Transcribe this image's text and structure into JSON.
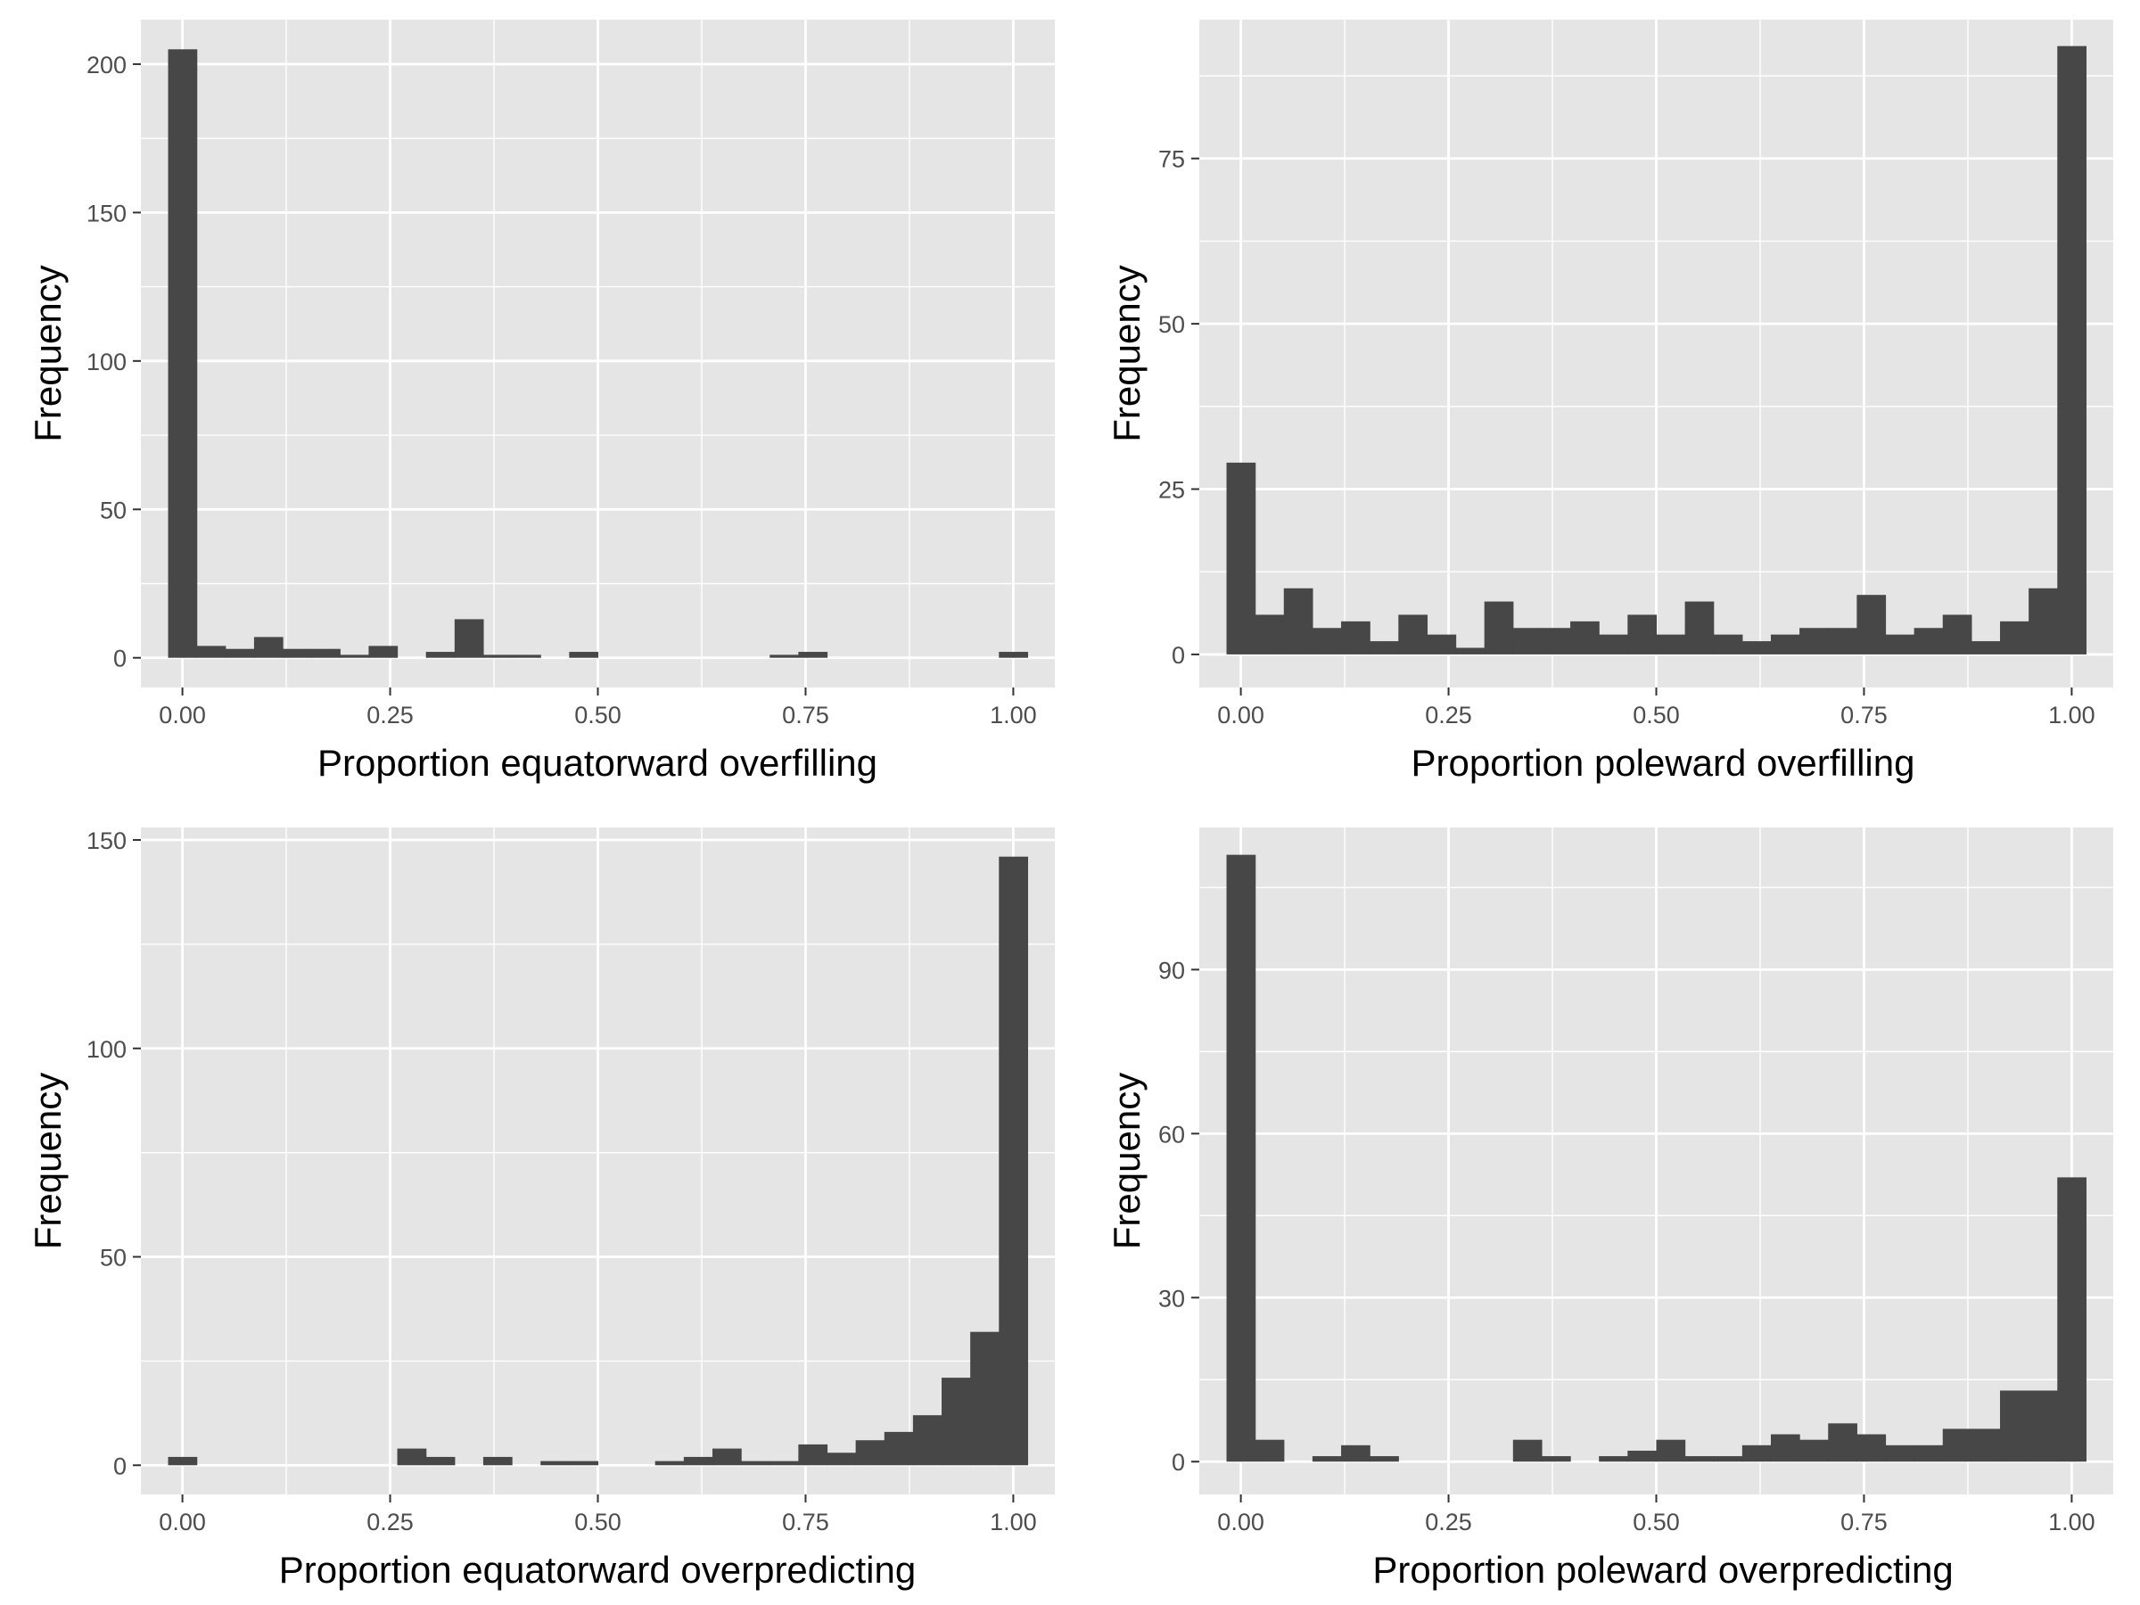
{
  "colors": {
    "panel_bg": "#e5e5e5",
    "grid": "#ffffff",
    "bar": "#474747",
    "tick": "#333333"
  },
  "chart_data": [
    {
      "type": "bar",
      "xlabel": "Proportion equatorward overfilling",
      "ylabel": "Frequency",
      "xlim": [
        -0.05,
        1.05
      ],
      "ylim": [
        -10,
        215
      ],
      "xticks": [
        0,
        0.25,
        0.5,
        0.75,
        1
      ],
      "xtick_labels": [
        "0.00",
        "0.25",
        "0.50",
        "0.75",
        "1.00"
      ],
      "yticks": [
        0,
        50,
        100,
        150,
        200
      ],
      "ytick_labels": [
        "0",
        "50",
        "100",
        "150",
        "200"
      ],
      "bin_start": -0.01724,
      "bin_width": 0.03448,
      "values": [
        205,
        4,
        3,
        7,
        3,
        3,
        1,
        4,
        0,
        2,
        13,
        1,
        1,
        0,
        2,
        0,
        0,
        0,
        0,
        0,
        0,
        1,
        2,
        0,
        0,
        0,
        0,
        0,
        0,
        2
      ]
    },
    {
      "type": "bar",
      "xlabel": "Proportion poleward overfilling",
      "ylabel": "Frequency",
      "xlim": [
        -0.05,
        1.05
      ],
      "ylim": [
        -5,
        96
      ],
      "xticks": [
        0,
        0.25,
        0.5,
        0.75,
        1
      ],
      "xtick_labels": [
        "0.00",
        "0.25",
        "0.50",
        "0.75",
        "1.00"
      ],
      "yticks": [
        0,
        25,
        50,
        75
      ],
      "ytick_labels": [
        "0",
        "25",
        "50",
        "75"
      ],
      "bin_start": -0.01724,
      "bin_width": 0.03448,
      "values": [
        29,
        6,
        10,
        4,
        5,
        2,
        6,
        3,
        1,
        8,
        4,
        4,
        5,
        3,
        6,
        3,
        8,
        3,
        2,
        3,
        4,
        4,
        9,
        3,
        4,
        6,
        2,
        5,
        10,
        92
      ]
    },
    {
      "type": "bar",
      "xlabel": "Proportion equatorward overpredicting",
      "ylabel": "Frequency",
      "xlim": [
        -0.05,
        1.05
      ],
      "ylim": [
        -7,
        153
      ],
      "xticks": [
        0,
        0.25,
        0.5,
        0.75,
        1
      ],
      "xtick_labels": [
        "0.00",
        "0.25",
        "0.50",
        "0.75",
        "1.00"
      ],
      "yticks": [
        0,
        50,
        100,
        150
      ],
      "ytick_labels": [
        "0",
        "50",
        "100",
        "150"
      ],
      "bin_start": -0.01724,
      "bin_width": 0.03448,
      "values": [
        2,
        0,
        0,
        0,
        0,
        0,
        0,
        0,
        4,
        2,
        0,
        2,
        0,
        1,
        1,
        0,
        0,
        1,
        2,
        4,
        1,
        1,
        5,
        3,
        6,
        8,
        12,
        21,
        32,
        146
      ]
    },
    {
      "type": "bar",
      "xlabel": "Proportion poleward overpredicting",
      "ylabel": "Frequency",
      "xlim": [
        -0.05,
        1.05
      ],
      "ylim": [
        -6,
        116
      ],
      "xticks": [
        0,
        0.25,
        0.5,
        0.75,
        1
      ],
      "xtick_labels": [
        "0.00",
        "0.25",
        "0.50",
        "0.75",
        "1.00"
      ],
      "yticks": [
        0,
        30,
        60,
        90
      ],
      "ytick_labels": [
        "0",
        "30",
        "60",
        "90"
      ],
      "bin_start": -0.01724,
      "bin_width": 0.03448,
      "values": [
        111,
        4,
        0,
        1,
        3,
        1,
        0,
        0,
        0,
        0,
        4,
        1,
        0,
        1,
        2,
        4,
        1,
        1,
        3,
        5,
        4,
        7,
        5,
        3,
        3,
        6,
        6,
        13,
        13,
        52
      ]
    }
  ]
}
